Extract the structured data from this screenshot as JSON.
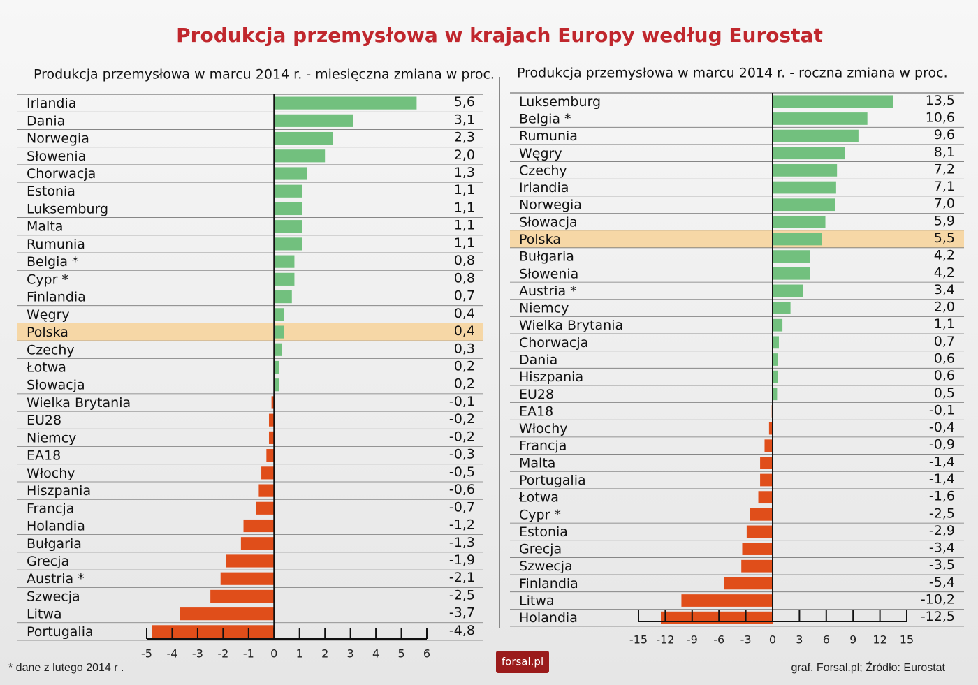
{
  "title": "Produkcja przemysłowa w krajach Europy według Eurostat",
  "footnote": "* dane z lutego 2014 r .",
  "source": "graf. Forsal.pl; Źródło: Eurostat",
  "logo": "forsal.pl",
  "chart_data": [
    {
      "type": "barh",
      "title": "Produkcja przemysłowa w marcu 2014 r. - miesięczna zmiana w proc.",
      "categories": [
        "Irlandia",
        "Dania",
        "Norwegia",
        "Słowenia",
        "Chorwacja",
        "Estonia",
        "Luksemburg",
        "Malta",
        "Rumunia",
        "Belgia *",
        "Cypr *",
        "Finlandia",
        "Węgry",
        "Polska",
        "Czechy",
        "Łotwa",
        "Słowacja",
        "Wielka Brytania",
        "EU28",
        "Niemcy",
        "EA18",
        "Włochy",
        "Hiszpania",
        "Francja",
        "Holandia",
        "Bułgaria",
        "Grecja",
        "Austria *",
        "Szwecja",
        "Litwa",
        "Portugalia"
      ],
      "values": [
        5.6,
        3.1,
        2.3,
        2.0,
        1.3,
        1.1,
        1.1,
        1.1,
        1.1,
        0.8,
        0.8,
        0.7,
        0.4,
        0.4,
        0.3,
        0.2,
        0.2,
        -0.1,
        -0.2,
        -0.2,
        -0.3,
        -0.5,
        -0.6,
        -0.7,
        -1.2,
        -1.3,
        -1.9,
        -2.1,
        -2.5,
        -3.7,
        -4.8
      ],
      "value_labels": [
        "5,6",
        "3,1",
        "2,3",
        "2,0",
        "1,3",
        "1,1",
        "1,1",
        "1,1",
        "1,1",
        "0,8",
        "0,8",
        "0,7",
        "0,4",
        "0,4",
        "0,3",
        "0,2",
        "0,2",
        "-0,1",
        "-0,2",
        "-0,2",
        "-0,3",
        "-0,5",
        "-0,6",
        "-0,7",
        "-1,2",
        "-1,3",
        "-1,9",
        "-2,1",
        "-2,5",
        "-3,7",
        "-4,8"
      ],
      "xlim": [
        -5,
        6
      ],
      "xticks": [
        -5,
        -4,
        -3,
        -2,
        -1,
        0,
        1,
        2,
        3,
        4,
        5,
        6
      ],
      "color_positive": "#72c07e",
      "color_negative": "#e04e1a",
      "highlight": "Polska",
      "highlight_color": "#f6d7a6"
    },
    {
      "type": "barh",
      "title": "Produkcja przemysłowa w marcu 2014 r. - roczna zmiana w proc.",
      "categories": [
        "Luksemburg",
        "Belgia *",
        "Rumunia",
        "Węgry",
        "Czechy",
        "Irlandia",
        "Norwegia",
        "Słowacja",
        "Polska",
        "Bułgaria",
        "Słowenia",
        "Austria *",
        "Niemcy",
        "Wielka Brytania",
        "Chorwacja",
        "Dania",
        "Hiszpania",
        "EU28",
        "EA18",
        "Włochy",
        "Francja",
        "Malta",
        "Portugalia",
        "Łotwa",
        "Cypr *",
        "Estonia",
        "Grecja",
        "Szwecja",
        "Finlandia",
        "Litwa",
        "Holandia"
      ],
      "values": [
        13.5,
        10.6,
        9.6,
        8.1,
        7.2,
        7.1,
        7.0,
        5.9,
        5.5,
        4.2,
        4.2,
        3.4,
        2.0,
        1.1,
        0.7,
        0.6,
        0.6,
        0.5,
        -0.1,
        -0.4,
        -0.9,
        -1.4,
        -1.4,
        -1.6,
        -2.5,
        -2.9,
        -3.4,
        -3.5,
        -5.4,
        -10.2,
        -12.5
      ],
      "value_labels": [
        "13,5",
        "10,6",
        "9,6",
        "8,1",
        "7,2",
        "7,1",
        "7,0",
        "5,9",
        "5,5",
        "4,2",
        "4,2",
        "3,4",
        "2,0",
        "1,1",
        "0,7",
        "0,6",
        "0,6",
        "0,5",
        "-0,1",
        "-0,4",
        "-0,9",
        "-1,4",
        "-1,4",
        "-1,6",
        "-2,5",
        "-2,9",
        "-3,4",
        "-3,5",
        "-5,4",
        "-10,2",
        "-12,5"
      ],
      "xlim": [
        -15,
        15
      ],
      "xticks": [
        -15,
        -12,
        -9,
        -6,
        -3,
        0,
        3,
        6,
        9,
        12,
        15
      ],
      "color_positive": "#72c07e",
      "color_negative": "#e04e1a",
      "highlight": "Polska",
      "highlight_color": "#f6d7a6"
    }
  ]
}
